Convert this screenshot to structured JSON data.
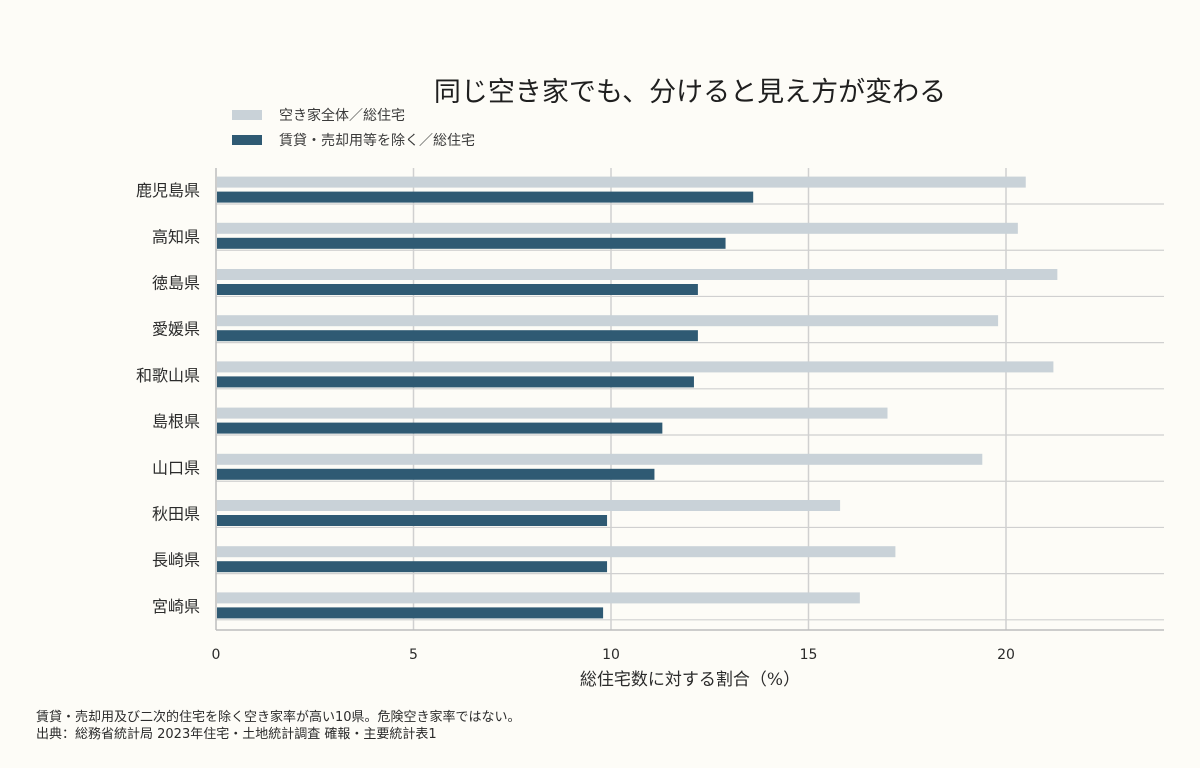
{
  "colors": {
    "total": "#c9d2d8",
    "excl": "#2f5a73",
    "grid": "#d0d0d0",
    "axis": "#bdbdbd",
    "background": "#fdfcf7"
  },
  "chart_data": {
    "type": "bar",
    "orientation": "horizontal",
    "title": "同じ空き家でも、分けると見え方が変わる",
    "xlabel": "総住宅数に対する割合（%）",
    "ylabel": "",
    "xlim": [
      0,
      24
    ],
    "xticks": [
      0,
      5,
      10,
      15,
      20
    ],
    "grid": true,
    "legend_position": "top-left",
    "categories": [
      "鹿児島県",
      "高知県",
      "徳島県",
      "愛媛県",
      "和歌山県",
      "島根県",
      "山口県",
      "秋田県",
      "長崎県",
      "宮崎県"
    ],
    "series": [
      {
        "name": "空き家全体／総住宅",
        "values": [
          20.5,
          20.3,
          21.3,
          19.8,
          21.2,
          17.0,
          19.4,
          15.8,
          17.2,
          16.3
        ]
      },
      {
        "name": "賃貸・売却用等を除く／総住宅",
        "values": [
          13.6,
          12.9,
          12.2,
          12.2,
          12.1,
          11.3,
          11.1,
          9.9,
          9.9,
          9.8
        ]
      }
    ]
  },
  "footnotes": {
    "note": "賃貸・売却用及び二次的住宅を除く空き家率が高い10県。危険空き家率ではない。",
    "source": "出典：総務省統計局 2023年住宅・土地統計調査 確報・主要統計表1"
  }
}
